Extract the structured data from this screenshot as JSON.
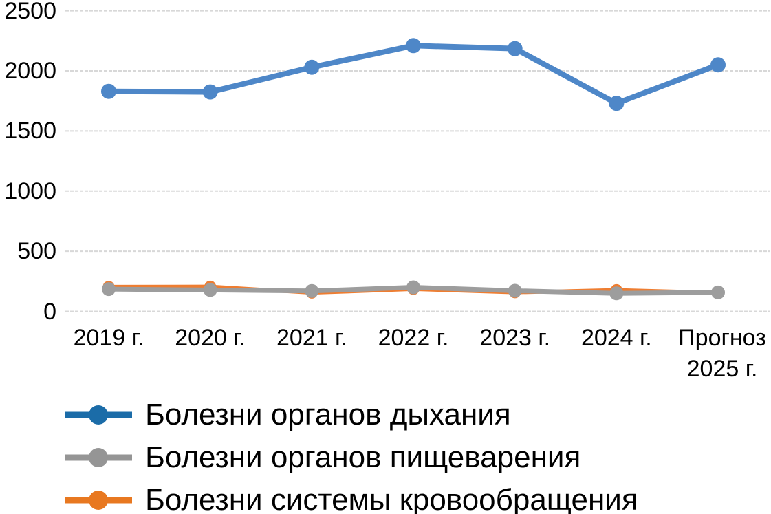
{
  "chart_data": {
    "type": "line",
    "title": "",
    "xlabel": "",
    "ylabel": "",
    "categories": [
      "2019 г.",
      "2020 г.",
      "2021 г.",
      "2022 г.",
      "2023 г.",
      "2024 г.",
      "Прогноз\n2025 г."
    ],
    "y_ticks": [
      0,
      500,
      1000,
      1500,
      2000,
      2500
    ],
    "ylim": [
      0,
      2500
    ],
    "grid": true,
    "gridline_color": "#d8d8d8",
    "text_color": "#000000",
    "legend_position": "bottom-left",
    "series": [
      {
        "name": "Болезни органов дыхания",
        "color": "#4e87c8",
        "legend_color": "#1b6ca8",
        "values": [
          1830,
          1825,
          2030,
          2210,
          2185,
          1730,
          2050
        ],
        "line_width": 8,
        "marker_radius": 11,
        "z": 2
      },
      {
        "name": "Болезни органов пищеварения",
        "color": "#9d9d9d",
        "legend_color": "#959595",
        "values": [
          185,
          178,
          170,
          200,
          172,
          150,
          158
        ],
        "line_width": 7,
        "marker_radius": 10,
        "z": 1
      },
      {
        "name": "Болезни системы кровообращения",
        "color": "#ee7d31",
        "legend_color": "#e87820",
        "values": [
          205,
          207,
          155,
          185,
          158,
          178,
          155
        ],
        "line_width": 5.5,
        "marker_radius": 8.5,
        "z": 0
      }
    ]
  }
}
